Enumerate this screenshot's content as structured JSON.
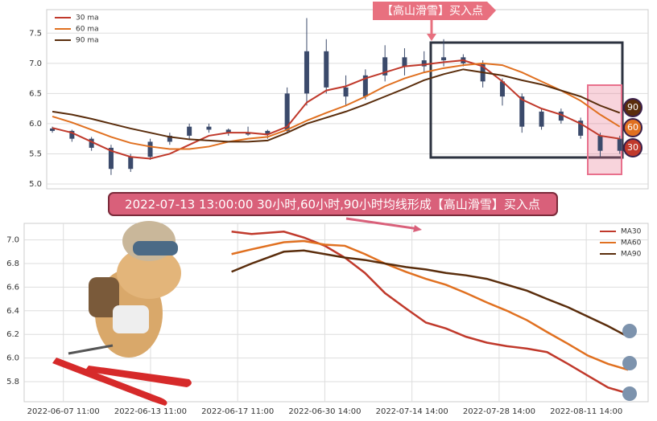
{
  "banner": {
    "text": "2022-07-13 13:00:00 30小时,60小时,90小时均线形成【高山滑雪】买入点"
  },
  "chart_data": [
    {
      "type": "candlestick",
      "annotation": "【高山滑雪】买入点",
      "end_labels": [
        "90",
        "60",
        "30"
      ],
      "xlim": [
        -0.29,
        30.45
      ],
      "ylim": [
        4.92,
        7.89
      ],
      "yticks": [
        {
          "value": 5,
          "label": "5.0"
        },
        5.5,
        {
          "value": 6,
          "label": "6.0"
        },
        6.5,
        {
          "value": 7,
          "label": "7.0"
        },
        7.5
      ],
      "grid": true,
      "legend": "upper left",
      "candle_color": "#3b4a6b",
      "x": [
        0,
        1,
        2,
        3,
        4,
        5,
        6,
        7,
        8,
        9,
        10,
        11,
        12,
        13,
        14,
        15,
        16,
        17,
        18,
        19,
        20,
        21,
        22,
        23,
        24,
        25,
        26,
        27,
        28,
        29
      ],
      "ohlc": [
        [
          5.92,
          5.95,
          5.85,
          5.88
        ],
        [
          5.88,
          5.9,
          5.7,
          5.75
        ],
        [
          5.75,
          5.78,
          5.55,
          5.6
        ],
        [
          5.6,
          5.65,
          5.15,
          5.25
        ],
        [
          5.25,
          5.5,
          5.2,
          5.45
        ],
        [
          5.45,
          5.75,
          5.4,
          5.7
        ],
        [
          5.7,
          5.85,
          5.65,
          5.8
        ],
        [
          5.8,
          6.0,
          5.75,
          5.95
        ],
        [
          5.95,
          6.0,
          5.85,
          5.9
        ],
        [
          5.9,
          5.92,
          5.8,
          5.85
        ],
        [
          5.85,
          5.95,
          5.8,
          5.82
        ],
        [
          5.82,
          5.9,
          5.75,
          5.88
        ],
        [
          5.88,
          6.6,
          5.85,
          6.5
        ],
        [
          6.5,
          7.75,
          6.3,
          7.2
        ],
        [
          7.2,
          7.4,
          6.5,
          6.6
        ],
        [
          6.6,
          6.8,
          6.3,
          6.45
        ],
        [
          6.45,
          6.9,
          6.4,
          6.8
        ],
        [
          6.8,
          7.3,
          6.7,
          7.1
        ],
        [
          7.1,
          7.25,
          6.8,
          6.95
        ],
        [
          6.95,
          7.2,
          6.85,
          7.05
        ],
        [
          7.05,
          7.4,
          6.95,
          7.1
        ],
        [
          7.1,
          7.15,
          6.95,
          7.0
        ],
        [
          7.0,
          7.05,
          6.6,
          6.7
        ],
        [
          6.7,
          6.75,
          6.3,
          6.45
        ],
        [
          6.45,
          6.5,
          5.85,
          5.95
        ],
        [
          5.95,
          6.25,
          5.9,
          6.2
        ],
        [
          6.2,
          6.25,
          6.0,
          6.05
        ],
        [
          6.05,
          6.1,
          5.75,
          5.8
        ],
        [
          5.8,
          5.85,
          5.45,
          5.55
        ],
        [
          5.55,
          5.8,
          5.5,
          5.75
        ]
      ],
      "series": [
        {
          "name": "30 ma",
          "color": "#c0392b",
          "values": [
            5.93,
            5.85,
            5.7,
            5.55,
            5.45,
            5.42,
            5.5,
            5.65,
            5.8,
            5.85,
            5.85,
            5.82,
            5.95,
            6.35,
            6.55,
            6.62,
            6.75,
            6.85,
            6.95,
            6.98,
            7.02,
            7.05,
            6.95,
            6.7,
            6.4,
            6.25,
            6.15,
            6.0,
            5.8,
            5.75
          ]
        },
        {
          "name": "60 ma",
          "color": "#e07020",
          "values": [
            6.12,
            6.02,
            5.9,
            5.78,
            5.68,
            5.62,
            5.58,
            5.58,
            5.62,
            5.7,
            5.75,
            5.78,
            5.9,
            6.05,
            6.18,
            6.3,
            6.45,
            6.62,
            6.75,
            6.85,
            6.92,
            6.97,
            7.0,
            6.97,
            6.85,
            6.7,
            6.55,
            6.38,
            6.15,
            5.95
          ]
        },
        {
          "name": "90 ma",
          "color": "#5a2d0c",
          "values": [
            6.2,
            6.15,
            6.08,
            6.0,
            5.92,
            5.85,
            5.78,
            5.74,
            5.72,
            5.7,
            5.7,
            5.72,
            5.85,
            6.0,
            6.1,
            6.2,
            6.32,
            6.45,
            6.58,
            6.72,
            6.82,
            6.9,
            6.85,
            6.8,
            6.72,
            6.65,
            6.55,
            6.45,
            6.3,
            6.18
          ]
        }
      ]
    },
    {
      "type": "line",
      "xlim": [
        -0.45,
        6.71
      ],
      "ylim": [
        5.63,
        7.14
      ],
      "xticks": [
        {
          "value": 0,
          "label": "2022-06-07 11:00"
        },
        {
          "value": 1,
          "label": "2022-06-13 11:00"
        },
        {
          "value": 2,
          "label": "2022-06-17 11:00"
        },
        {
          "value": 3,
          "label": "2022-06-30 14:00"
        },
        {
          "value": 4,
          "label": "2022-07-14 14:00"
        },
        {
          "value": 5,
          "label": "2022-07-28 14:00"
        },
        {
          "value": 6,
          "label": "2022-08-11 14:00"
        }
      ],
      "yticks": [
        5.8,
        {
          "value": 6,
          "label": "6.0"
        },
        6.2,
        6.4,
        6.6,
        6.8,
        {
          "value": 7,
          "label": "7.0"
        }
      ],
      "grid": true,
      "legend": "upper right",
      "x": [
        1.93,
        2.16,
        2.53,
        2.76,
        3.0,
        3.23,
        3.46,
        3.69,
        3.93,
        4.16,
        4.39,
        4.62,
        4.86,
        5.09,
        5.32,
        5.55,
        5.79,
        6.02,
        6.25,
        6.48
      ],
      "series": [
        {
          "name": "MA30",
          "color": "#c0392b",
          "values": [
            7.07,
            7.05,
            7.07,
            7.02,
            6.95,
            6.85,
            6.72,
            6.55,
            6.42,
            6.3,
            6.25,
            6.18,
            6.13,
            6.1,
            6.08,
            6.05,
            5.95,
            5.85,
            5.75,
            5.7
          ]
        },
        {
          "name": "MA60",
          "color": "#e07020",
          "values": [
            6.88,
            6.92,
            6.98,
            6.99,
            6.96,
            6.95,
            6.88,
            6.8,
            6.73,
            6.67,
            6.62,
            6.55,
            6.47,
            6.4,
            6.32,
            6.22,
            6.12,
            6.02,
            5.95,
            5.9
          ]
        },
        {
          "name": "MA90",
          "color": "#5a2d0c",
          "values": [
            6.73,
            6.8,
            6.9,
            6.91,
            6.88,
            6.85,
            6.83,
            6.8,
            6.77,
            6.75,
            6.72,
            6.7,
            6.67,
            6.62,
            6.57,
            6.5,
            6.43,
            6.35,
            6.27,
            6.18
          ]
        }
      ]
    }
  ]
}
